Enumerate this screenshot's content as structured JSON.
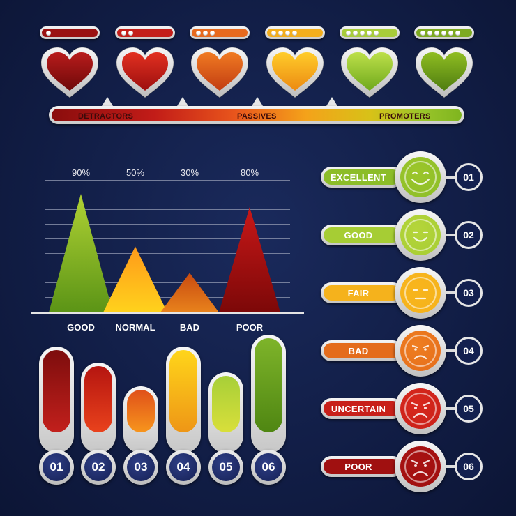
{
  "hearts": [
    {
      "color_top": "#b81c1c",
      "color_bottom": "#6e0909",
      "dots": 1,
      "bar_color": "#9a1212"
    },
    {
      "color_top": "#e23020",
      "color_bottom": "#9c0f0f",
      "dots": 2,
      "bar_color": "#c41f1a"
    },
    {
      "color_top": "#f07a22",
      "color_bottom": "#c23d12",
      "dots": 3,
      "bar_color": "#e76a1e"
    },
    {
      "color_top": "#ffcc2a",
      "color_bottom": "#ec8a12",
      "dots": 4,
      "bar_color": "#f3ae1c"
    },
    {
      "color_top": "#bde04a",
      "color_bottom": "#6fa91c",
      "dots": 5,
      "bar_color": "#a8cd3a"
    },
    {
      "color_top": "#8fbd22",
      "color_bottom": "#4f7d10",
      "dots": 6,
      "bar_color": "#7daa20"
    }
  ],
  "nps_scale": {
    "detractors": "DETRACTORS",
    "passives": "PASSIVES",
    "promoters": "PROMOTERS"
  },
  "triangle_chart": {
    "items": [
      {
        "label": "GOOD",
        "pct_label": "90%",
        "value": 90,
        "color_top": "#b0d234",
        "color_bottom": "#5b9416"
      },
      {
        "label": "NORMAL",
        "pct_label": "50%",
        "value": 50,
        "color_top": "#ff9a1a",
        "color_bottom": "#ffd21c"
      },
      {
        "label": "BAD",
        "pct_label": "30%",
        "value": 30,
        "color_top": "#c84a10",
        "color_bottom": "#e8821c"
      },
      {
        "label": "POOR",
        "pct_label": "80%",
        "value": 80,
        "color_top": "#c81818",
        "color_bottom": "#7c0808"
      }
    ]
  },
  "vertical_bars": [
    {
      "num": "01",
      "level": 0.88,
      "color_top": "#7d0d0d",
      "color_bottom": "#c2201c"
    },
    {
      "num": "02",
      "level": 0.72,
      "color_top": "#b51510",
      "color_bottom": "#e9421c"
    },
    {
      "num": "03",
      "level": 0.48,
      "color_top": "#e0501a",
      "color_bottom": "#f7951c"
    },
    {
      "num": "04",
      "level": 0.88,
      "color_top": "#ffd51a",
      "color_bottom": "#ee9616"
    },
    {
      "num": "05",
      "level": 0.62,
      "color_top": "#a7cf38",
      "color_bottom": "#d9df3a"
    },
    {
      "num": "06",
      "level": 1.0,
      "color_top": "#7eb42a",
      "color_bottom": "#4f8612"
    }
  ],
  "ratings": [
    {
      "label": "EXCELLENT",
      "num": "01",
      "mood": "very-happy",
      "pill_color": "#8cbd28",
      "face_color": "#9cc62a"
    },
    {
      "label": "GOOD",
      "num": "02",
      "mood": "happy",
      "pill_color": "#a6cd34",
      "face_color": "#b5d53a"
    },
    {
      "label": "FAIR",
      "num": "03",
      "mood": "neutral",
      "pill_color": "#f5b21c",
      "face_color": "#f8b51c"
    },
    {
      "label": "BAD",
      "num": "04",
      "mood": "sad",
      "pill_color": "#e46c1c",
      "face_color": "#ef7e20"
    },
    {
      "label": "UNCERTAIN",
      "num": "05",
      "mood": "upset",
      "pill_color": "#c8201a",
      "face_color": "#d8281c"
    },
    {
      "label": "POOR",
      "num": "06",
      "mood": "angry",
      "pill_color": "#a01010",
      "face_color": "#a81212"
    }
  ]
}
